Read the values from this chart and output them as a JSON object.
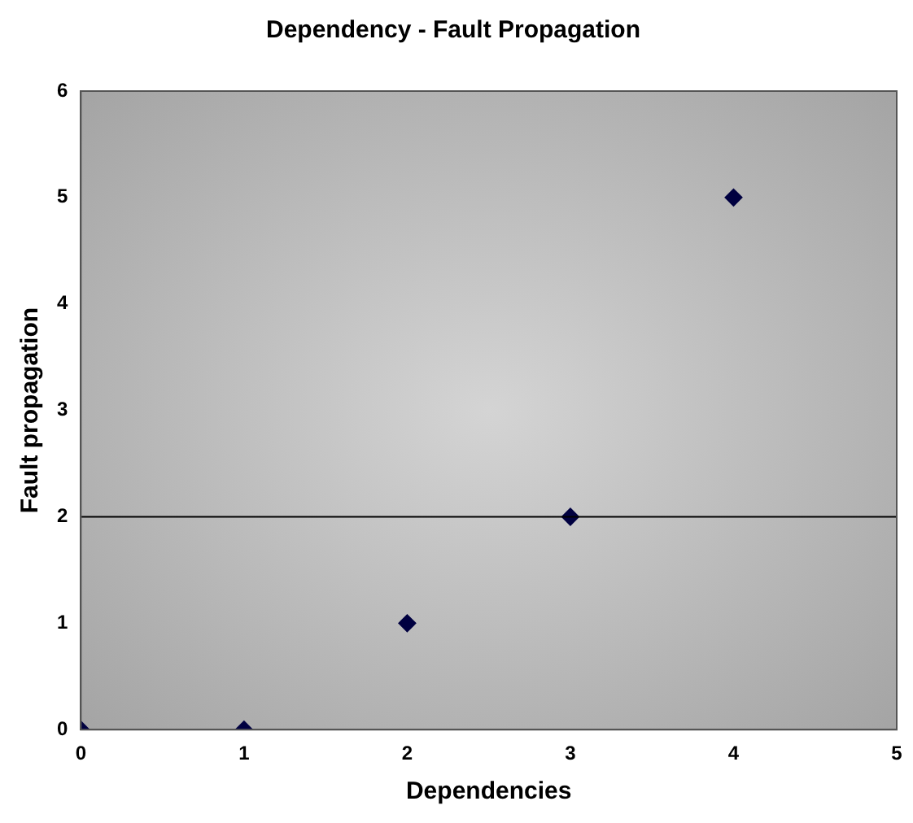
{
  "chart_data": {
    "type": "scatter",
    "title": "Dependency - Fault Propagation",
    "xlabel": "Dependencies",
    "ylabel": "Fault propagation",
    "x": [
      0,
      1,
      2,
      3,
      4
    ],
    "values": [
      0,
      0,
      1,
      2,
      5
    ],
    "color": "#000040",
    "marker": "diamond",
    "xlim": [
      0,
      5
    ],
    "xticks": [
      0,
      1,
      2,
      3,
      4,
      5
    ],
    "ylim": [
      0,
      6
    ],
    "yticks": [
      0,
      1,
      2,
      3,
      4,
      5,
      6
    ],
    "grid": false,
    "legend": false,
    "ref_lines": [
      {
        "axis": "y",
        "value": 2,
        "color": "#000000"
      }
    ]
  }
}
